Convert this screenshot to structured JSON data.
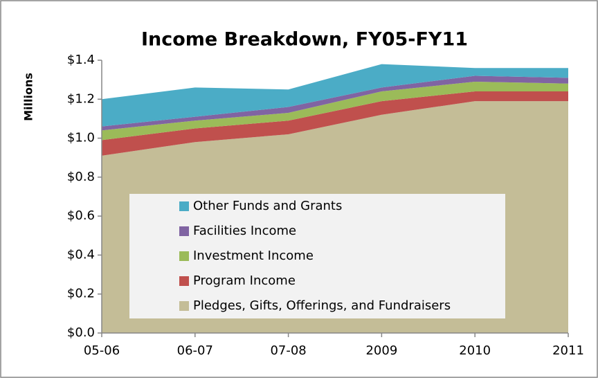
{
  "chart_data": {
    "type": "stacked_area",
    "title": "Income Breakdown, FY05-FY11",
    "y_label": "Millions",
    "categories": [
      "05-06",
      "06-07",
      "07-08",
      "2009",
      "2010",
      "2011"
    ],
    "series": [
      {
        "name": "Pledges, Gifts,  Offerings, and Fundraisers",
        "color": "#c4bd97",
        "values": [
          0.91,
          0.98,
          1.02,
          1.12,
          1.19,
          1.19
        ]
      },
      {
        "name": "Program Income",
        "color": "#c0504d",
        "values": [
          0.08,
          0.07,
          0.07,
          0.07,
          0.05,
          0.05
        ]
      },
      {
        "name": "Investment Income",
        "color": "#9bbb59",
        "values": [
          0.05,
          0.04,
          0.04,
          0.05,
          0.05,
          0.04
        ]
      },
      {
        "name": "Facilities Income",
        "color": "#8064a2",
        "values": [
          0.02,
          0.02,
          0.03,
          0.02,
          0.03,
          0.03
        ]
      },
      {
        "name": "Other Funds and Grants",
        "color": "#4bacc6",
        "values": [
          0.14,
          0.15,
          0.09,
          0.12,
          0.04,
          0.05
        ]
      }
    ],
    "ylim": [
      0,
      1.4
    ],
    "yticks": [
      {
        "value": 0,
        "label": "$0.0"
      },
      {
        "value": 0.2,
        "label": "$0.2"
      },
      {
        "value": 0.4,
        "label": "$0.4"
      },
      {
        "value": 0.6,
        "label": "$0.6"
      },
      {
        "value": 0.8,
        "label": "$0.8"
      },
      {
        "value": 1.0,
        "label": "$1.0"
      },
      {
        "value": 1.2,
        "label": "$1.2"
      },
      {
        "value": 1.4,
        "label": "$1.4"
      }
    ],
    "legend": "inside"
  }
}
